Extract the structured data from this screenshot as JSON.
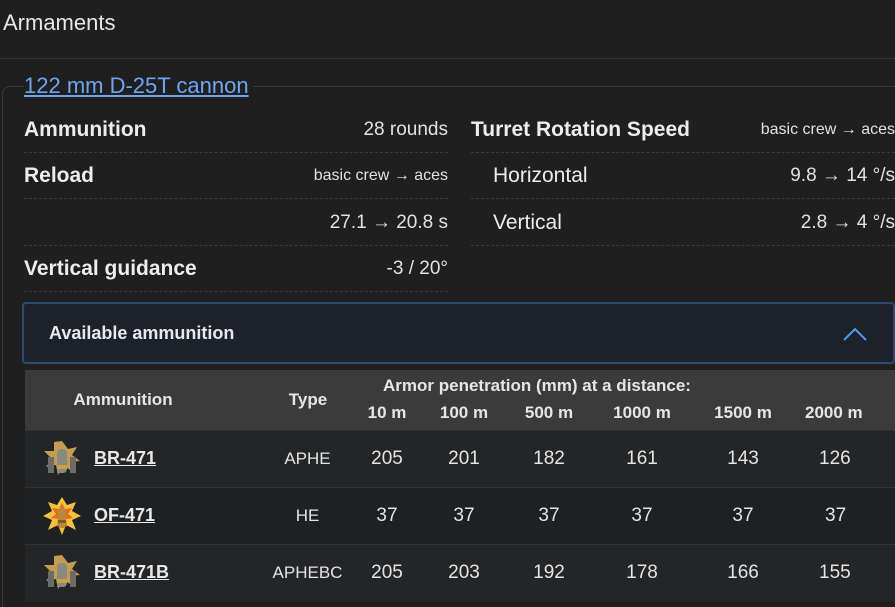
{
  "section": {
    "title": "Armaments"
  },
  "weapon": {
    "name": "122 mm D-25T cannon"
  },
  "stats_left": [
    {
      "label": "Ammunition",
      "value": "28 rounds",
      "sub": false
    },
    {
      "label": "Reload",
      "value": "basic crew → aces",
      "sub": false
    },
    {
      "label": "",
      "value": "27.1 → 20.8 s",
      "sub": false
    },
    {
      "label": "Vertical guidance",
      "value": "-3 / 20°",
      "sub": false
    }
  ],
  "stats_right": [
    {
      "label": "Turret Rotation Speed",
      "value": "basic crew → aces"
    },
    {
      "label": "Horizontal",
      "value": "9.8 → 14 °/s"
    },
    {
      "label": "Vertical",
      "value": "2.8 → 4 °/s"
    }
  ],
  "available_ammo": {
    "title": "Available ammunition",
    "expanded": true,
    "headers": {
      "ammunition": "Ammunition",
      "type": "Type",
      "penetration": "Armor penetration (mm) at a distance:",
      "distances": [
        "10 m",
        "100 m",
        "500 m",
        "1000 m",
        "1500 m",
        "2000 m"
      ]
    },
    "rows": [
      {
        "icon": "ap-shell-icon",
        "name": "BR-471",
        "type": "APHE",
        "pen": [
          "205",
          "201",
          "182",
          "161",
          "143",
          "126"
        ]
      },
      {
        "icon": "he-shell-icon",
        "name": "OF-471",
        "type": "HE",
        "pen": [
          "37",
          "37",
          "37",
          "37",
          "37",
          "37"
        ]
      },
      {
        "icon": "ap-shell-icon",
        "name": "BR-471B",
        "type": "APHEBC",
        "pen": [
          "205",
          "203",
          "192",
          "178",
          "166",
          "155"
        ]
      }
    ]
  }
}
